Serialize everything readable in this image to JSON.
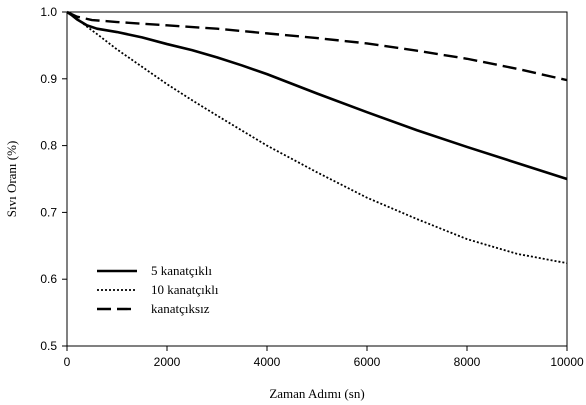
{
  "chart_data": {
    "type": "line",
    "title": "",
    "xlabel": "Zaman Adımı (sn)",
    "ylabel": "Sıvı Oranı (%)",
    "xlim": [
      0,
      10000
    ],
    "ylim": [
      0.5,
      1.0
    ],
    "x_ticks": [
      0,
      2000,
      4000,
      6000,
      8000,
      10000
    ],
    "y_ticks": [
      0.5,
      0.6,
      0.7,
      0.8,
      0.9,
      1.0
    ],
    "x_tick_labels": [
      "0",
      "2000",
      "4000",
      "6000",
      "8000",
      "10000"
    ],
    "y_tick_labels": [
      "0.5",
      "0.6",
      "0.7",
      "0.8",
      "0.9",
      "1.0"
    ],
    "grid": false,
    "legend_position": "bottom-left",
    "series": [
      {
        "name": "5 kanatçıklı",
        "style": "solid",
        "color": "#000000",
        "x": [
          0,
          100,
          200,
          400,
          600,
          1000,
          1500,
          2000,
          2500,
          3000,
          3500,
          4000,
          5000,
          6000,
          7000,
          8000,
          9000,
          10000
        ],
        "y": [
          1.0,
          0.995,
          0.989,
          0.98,
          0.975,
          0.97,
          0.962,
          0.952,
          0.943,
          0.932,
          0.92,
          0.907,
          0.878,
          0.85,
          0.823,
          0.798,
          0.774,
          0.75
        ]
      },
      {
        "name": "10 kanatçıklı",
        "style": "dotted",
        "color": "#000000",
        "x": [
          0,
          200,
          400,
          600,
          1000,
          1500,
          2000,
          2500,
          3000,
          4000,
          5000,
          6000,
          7000,
          8000,
          9000,
          10000
        ],
        "y": [
          1.0,
          0.99,
          0.978,
          0.967,
          0.944,
          0.918,
          0.892,
          0.868,
          0.845,
          0.8,
          0.76,
          0.722,
          0.69,
          0.66,
          0.638,
          0.624
        ]
      },
      {
        "name": "kanatçıksız",
        "style": "dashed",
        "color": "#000000",
        "x": [
          0,
          200,
          500,
          1000,
          2000,
          3000,
          4000,
          5000,
          6000,
          7000,
          8000,
          9000,
          10000
        ],
        "y": [
          1.0,
          0.993,
          0.988,
          0.985,
          0.98,
          0.975,
          0.968,
          0.961,
          0.953,
          0.942,
          0.93,
          0.915,
          0.898
        ]
      }
    ]
  }
}
